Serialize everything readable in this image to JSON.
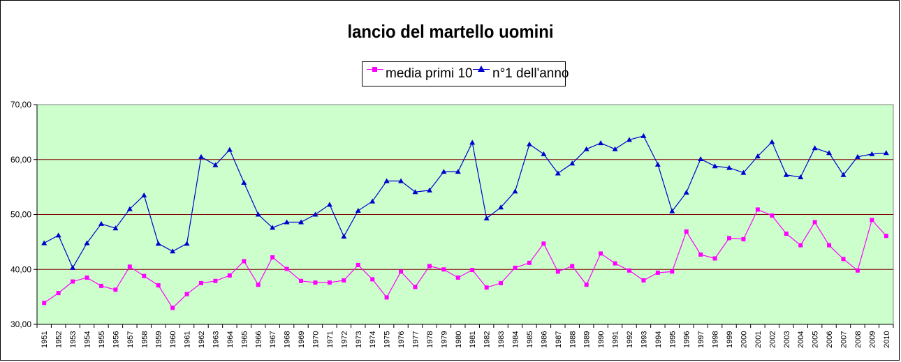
{
  "chart_data": {
    "type": "line",
    "title": "lancio del martello uomini",
    "xlabel": "",
    "ylabel": "",
    "ylim": [
      30,
      70
    ],
    "yticks": [
      "30,00",
      "40,00",
      "50,00",
      "60,00",
      "70,00"
    ],
    "grid": "horizontal",
    "legend_position": "top-center",
    "plot_bg": "#ccffcc",
    "gridline_color": "#800000",
    "categories": [
      "1951",
      "1952",
      "1953",
      "1954",
      "1955",
      "1956",
      "1957",
      "1958",
      "1959",
      "1960",
      "1961",
      "1962",
      "1963",
      "1964",
      "1965",
      "1966",
      "1967",
      "1968",
      "1969",
      "1970",
      "1971",
      "1972",
      "1973",
      "1974",
      "1975",
      "1976",
      "1977",
      "1978",
      "1979",
      "1980",
      "1981",
      "1982",
      "1983",
      "1984",
      "1985",
      "1986",
      "1987",
      "1988",
      "1989",
      "1990",
      "1991",
      "1992",
      "1993",
      "1994",
      "1995",
      "1996",
      "1997",
      "1998",
      "1999",
      "2000",
      "2001",
      "2002",
      "2003",
      "2004",
      "2005",
      "2006",
      "2007",
      "2008",
      "2009",
      "2010"
    ],
    "series": [
      {
        "name": "media primi 10",
        "color": "#ff00ff",
        "marker": "square",
        "values": [
          33.9,
          35.7,
          37.8,
          38.5,
          37.0,
          36.3,
          40.5,
          38.8,
          37.1,
          33.0,
          35.5,
          37.5,
          37.9,
          38.9,
          41.5,
          37.2,
          42.2,
          40.1,
          37.9,
          37.6,
          37.6,
          38.0,
          40.8,
          38.2,
          34.9,
          39.6,
          36.8,
          40.6,
          40.0,
          38.5,
          39.9,
          36.7,
          37.5,
          40.3,
          41.2,
          44.7,
          39.6,
          40.6,
          37.2,
          42.9,
          41.1,
          39.8,
          38.0,
          39.4,
          39.6,
          46.9,
          42.7,
          42.0,
          45.7,
          45.5,
          50.9,
          49.8,
          46.5,
          44.4,
          48.6,
          44.4,
          41.9,
          39.8,
          49.0,
          46.1
        ]
      },
      {
        "name": "n°1 dell'anno",
        "color": "#0000cc",
        "marker": "triangle",
        "values": [
          44.8,
          46.2,
          40.3,
          44.8,
          48.3,
          47.5,
          51.0,
          53.5,
          44.7,
          43.3,
          44.7,
          60.5,
          59.0,
          61.8,
          55.8,
          50.0,
          47.6,
          48.6,
          48.6,
          50.0,
          51.8,
          46.0,
          50.7,
          52.4,
          56.1,
          56.1,
          54.1,
          54.4,
          57.8,
          57.8,
          63.1,
          49.3,
          51.3,
          54.2,
          62.8,
          61.0,
          57.5,
          59.3,
          61.9,
          63.0,
          61.9,
          63.6,
          64.3,
          59.1,
          50.6,
          54.0,
          60.1,
          58.8,
          58.5,
          57.6,
          60.6,
          63.2,
          57.2,
          56.8,
          62.1,
          61.2,
          57.2,
          60.5,
          61.0,
          61.2
        ]
      }
    ]
  }
}
